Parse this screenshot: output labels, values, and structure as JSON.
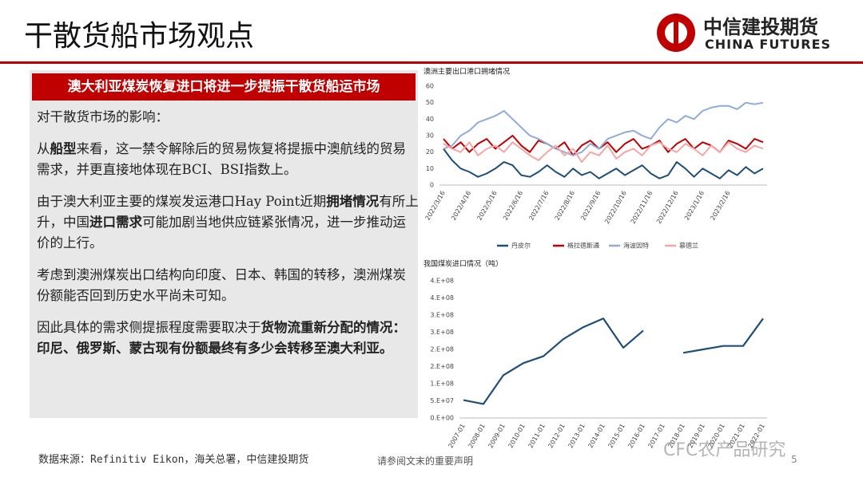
{
  "header": {
    "title": "干散货船市场观点",
    "logo_cn": "中信建投期货",
    "logo_en": "CHINA FUTURES"
  },
  "panel": {
    "banner": "澳大利亚煤炭恢复进口将进一步提振干散货船运市场",
    "paragraphs": [
      [
        {
          "text": "对干散货市场的影响："
        }
      ],
      [
        {
          "text": "从"
        },
        {
          "text": "船型",
          "bold": true
        },
        {
          "text": "来看，这一禁令解除后的贸易恢复将提振中澳航线的贸易需求，并更直接地体现在BCI、BSI指数上。"
        }
      ],
      [
        {
          "text": "由于澳大利亚主要的煤炭发运港口Hay Point近期"
        },
        {
          "text": "拥堵情况",
          "bold": true
        },
        {
          "text": "有所上升，中国"
        },
        {
          "text": "进口需求",
          "bold": true
        },
        {
          "text": "可能加剧当地供应链紧张情况，进一步推动运价的上行。"
        }
      ],
      [
        {
          "text": "考虑到澳洲煤炭出口结构向印度、日本、韩国的转移，澳洲煤炭份额能否回到历史水平尚未可知。"
        }
      ],
      [
        {
          "text": "因此具体的需求侧提振程度需要取决于"
        },
        {
          "text": "货物流重新分配的情况：印尼、俄罗斯、蒙古现有份额最终有多少会转移至澳大利亚。",
          "bold": true
        }
      ]
    ]
  },
  "footer": {
    "source": "数据来源：Refinitiv Eikon，海关总署，中信建投期货",
    "note": "请参阅文末的重要声明",
    "page": "5",
    "watermark": "CFC农产品研究"
  },
  "chart_data": [
    {
      "type": "line",
      "title": "澳洲主要出口港口拥堵情况",
      "categories": [
        "2022/3/16",
        null,
        null,
        "2022/4/16",
        null,
        null,
        "2022/5/16",
        null,
        null,
        "2022/6/16",
        null,
        null,
        "2022/7/16",
        null,
        null,
        "2022/8/16",
        null,
        null,
        "2022/9/16",
        null,
        null,
        "2022/10/16",
        null,
        null,
        "2022/11/16",
        null,
        null,
        "2022/12/16",
        null,
        null,
        "2023/1/16",
        null,
        null,
        "2023/2/16",
        null,
        null,
        null,
        null
      ],
      "series": [
        {
          "name": "丹皮尔",
          "color": "#1f4e79",
          "values": [
            22,
            15,
            10,
            8,
            5,
            7,
            10,
            14,
            12,
            6,
            5,
            8,
            12,
            8,
            5,
            10,
            6,
            8,
            4,
            7,
            10,
            6,
            9,
            12,
            7,
            4,
            6,
            14,
            10,
            5,
            10,
            7,
            4,
            9,
            6,
            11,
            7,
            10
          ]
        },
        {
          "name": "格拉德斯通",
          "color": "#c00000",
          "values": [
            28,
            22,
            26,
            20,
            25,
            28,
            22,
            26,
            30,
            24,
            20,
            27,
            25,
            22,
            26,
            18,
            24,
            27,
            22,
            26,
            20,
            25,
            28,
            22,
            24,
            27,
            20,
            25,
            28,
            22,
            26,
            24,
            20,
            27,
            25,
            22,
            28,
            26
          ]
        },
        {
          "name": "海波因特",
          "color": "#8faadc",
          "values": [
            22,
            24,
            30,
            33,
            38,
            40,
            42,
            45,
            40,
            35,
            30,
            28,
            25,
            22,
            20,
            18,
            20,
            25,
            22,
            28,
            30,
            32,
            33,
            30,
            28,
            35,
            40,
            38,
            42,
            40,
            45,
            47,
            48,
            48,
            46,
            50,
            49,
            50
          ]
        },
        {
          "name": "慕德兰",
          "color": "#f4a6a6",
          "values": [
            25,
            22,
            20,
            26,
            18,
            22,
            24,
            20,
            26,
            22,
            18,
            15,
            20,
            24,
            18,
            22,
            14,
            20,
            18,
            24,
            16,
            20,
            22,
            18,
            24,
            26,
            22,
            20,
            25,
            22,
            18,
            24,
            20,
            26,
            22,
            20,
            24,
            22
          ]
        }
      ],
      "ylim": [
        0,
        60
      ],
      "yticks": [
        0,
        10,
        20,
        30,
        40,
        50,
        60
      ]
    },
    {
      "type": "line",
      "title": "我国煤炭进口情况（吨）",
      "categories": [
        "2007-01",
        "2008-01",
        "2009-01",
        "2010-01",
        "2011-01",
        "2012-01",
        "2013-01",
        "2014-01",
        "2015-01",
        "2016-01",
        "2017-01",
        "2018-01",
        "2019-01",
        "2020-01",
        "2021-01",
        "2022-01"
      ],
      "series": [
        {
          "name": "煤炭进口",
          "color": "#1f4e79",
          "values": [
            52000000,
            41000000,
            125000000,
            160000000,
            180000000,
            230000000,
            265000000,
            290000000,
            205000000,
            255000000,
            null,
            190000000,
            200000000,
            210000000,
            210000000,
            290000000
          ]
        }
      ],
      "ylim": [
        0,
        400000000
      ],
      "yticks": [
        {
          "value": 0,
          "label": "0.E+00"
        },
        {
          "value": 50000000,
          "label": "5.E+07"
        },
        {
          "value": 100000000,
          "label": "1.E+08"
        },
        {
          "value": 150000000,
          "label": "2.E+08"
        },
        {
          "value": 200000000,
          "label": "2.E+08"
        },
        {
          "value": 250000000,
          "label": "3.E+08"
        },
        {
          "value": 300000000,
          "label": "3.E+08"
        },
        {
          "value": 350000000,
          "label": "4.E+08"
        },
        {
          "value": 400000000,
          "label": "4.E+08"
        }
      ]
    }
  ]
}
